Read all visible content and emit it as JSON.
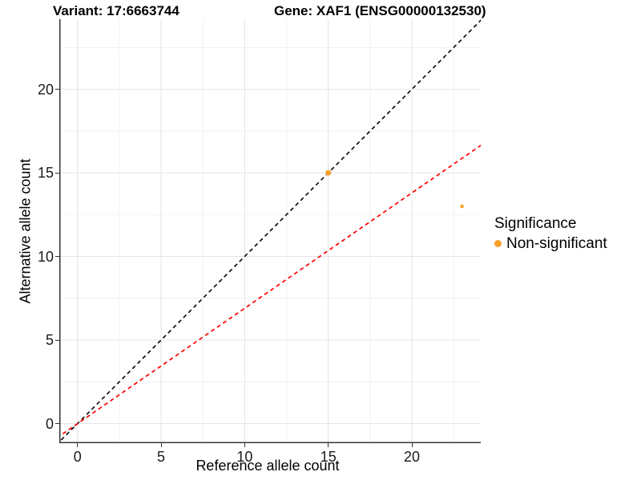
{
  "header": {
    "variant_title": "Variant: 17:6663744",
    "gene_title": "Gene: XAF1 (ENSG00000132530)"
  },
  "chart_data": {
    "type": "scatter",
    "xlabel": "Reference allele count",
    "ylabel": "Alternative allele count",
    "xlim": [
      -1.09,
      24.12
    ],
    "ylim": [
      -1.17,
      24.19
    ],
    "x_ticks": [
      0,
      5,
      10,
      15,
      20
    ],
    "y_ticks": [
      0,
      5,
      10,
      15,
      20
    ],
    "minor_gridlines": [
      2.5,
      7.5,
      12.5,
      17.5,
      22.5
    ],
    "grid": "major and minor, light gray on white",
    "points": [
      {
        "x": 15,
        "y": 15,
        "diameter": 7,
        "series": "Non-significant"
      },
      {
        "x": 23,
        "y": 13,
        "diameter": 4.5,
        "series": "Non-significant"
      }
    ],
    "lines": [
      {
        "name": "identity-line",
        "slope": 1,
        "intercept": 0,
        "color": "#111111",
        "style": "dashed"
      },
      {
        "name": "expected-ratio-line",
        "slope": 0.69,
        "intercept": 0,
        "color": "#FF0000",
        "style": "dashed"
      }
    ],
    "legend": {
      "position": "right",
      "title": "Significance",
      "items": [
        {
          "label": "Non-significant",
          "color": "#F8A029"
        }
      ]
    }
  },
  "colors": {
    "point": "#F8A029",
    "grid_major": "#E4E4E4",
    "grid_minor": "#F1F1F1",
    "axis_line": "#333333",
    "tick_text": "#1a1a1a",
    "background": "#ffffff"
  }
}
